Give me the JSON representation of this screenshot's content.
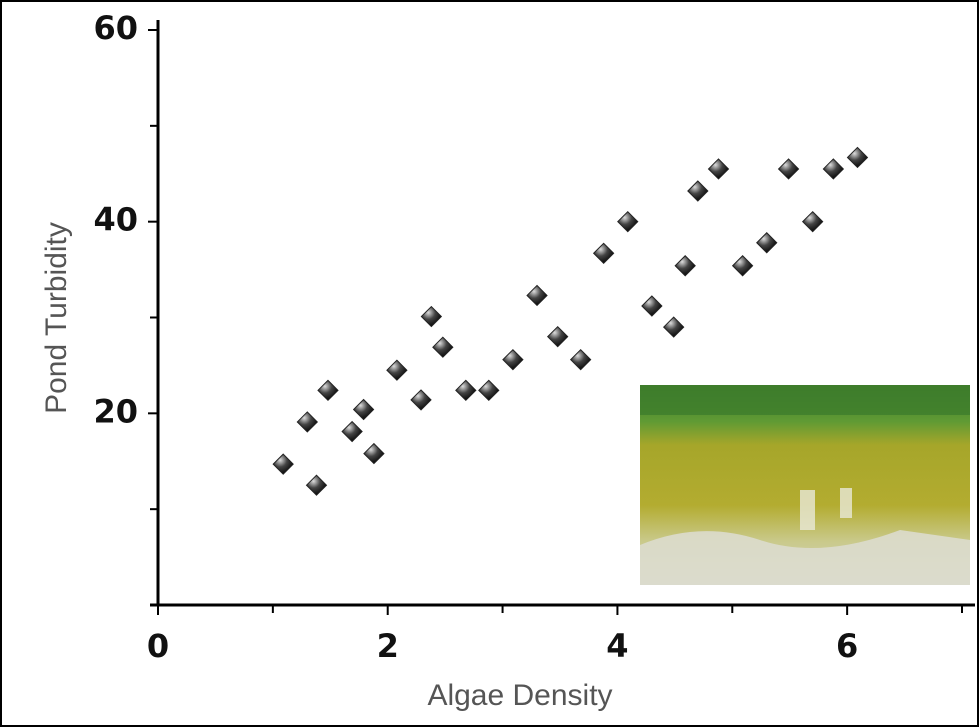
{
  "chart_data": {
    "type": "scatter",
    "xlabel": "Algae Density",
    "ylabel": "Pond Turbidity",
    "x": [
      1.09,
      1.3,
      1.38,
      1.48,
      1.69,
      1.79,
      1.88,
      2.08,
      2.29,
      2.38,
      2.48,
      2.68,
      2.88,
      3.09,
      3.3,
      3.48,
      3.68,
      3.88,
      4.09,
      4.3,
      4.49,
      4.59,
      4.7,
      4.88,
      5.09,
      5.3,
      5.49,
      5.7,
      5.88,
      6.09
    ],
    "values": [
      14.7,
      19.1,
      12.5,
      22.4,
      18.1,
      20.4,
      15.8,
      24.5,
      21.4,
      30.1,
      26.9,
      22.4,
      22.4,
      25.6,
      32.3,
      28.0,
      25.6,
      36.7,
      40.0,
      31.2,
      29.0,
      35.4,
      43.2,
      45.5,
      35.4,
      37.8,
      45.5,
      40.0,
      45.5,
      46.7
    ],
    "color": "#222222",
    "xlim": [
      0,
      7
    ],
    "xticks": [
      0,
      2,
      4,
      6
    ],
    "xminorticks": [
      1,
      3,
      5,
      7
    ],
    "ylim": [
      0,
      60
    ],
    "yticks": [
      20,
      40,
      60
    ],
    "yminorticks": [
      10,
      30,
      50
    ]
  }
}
